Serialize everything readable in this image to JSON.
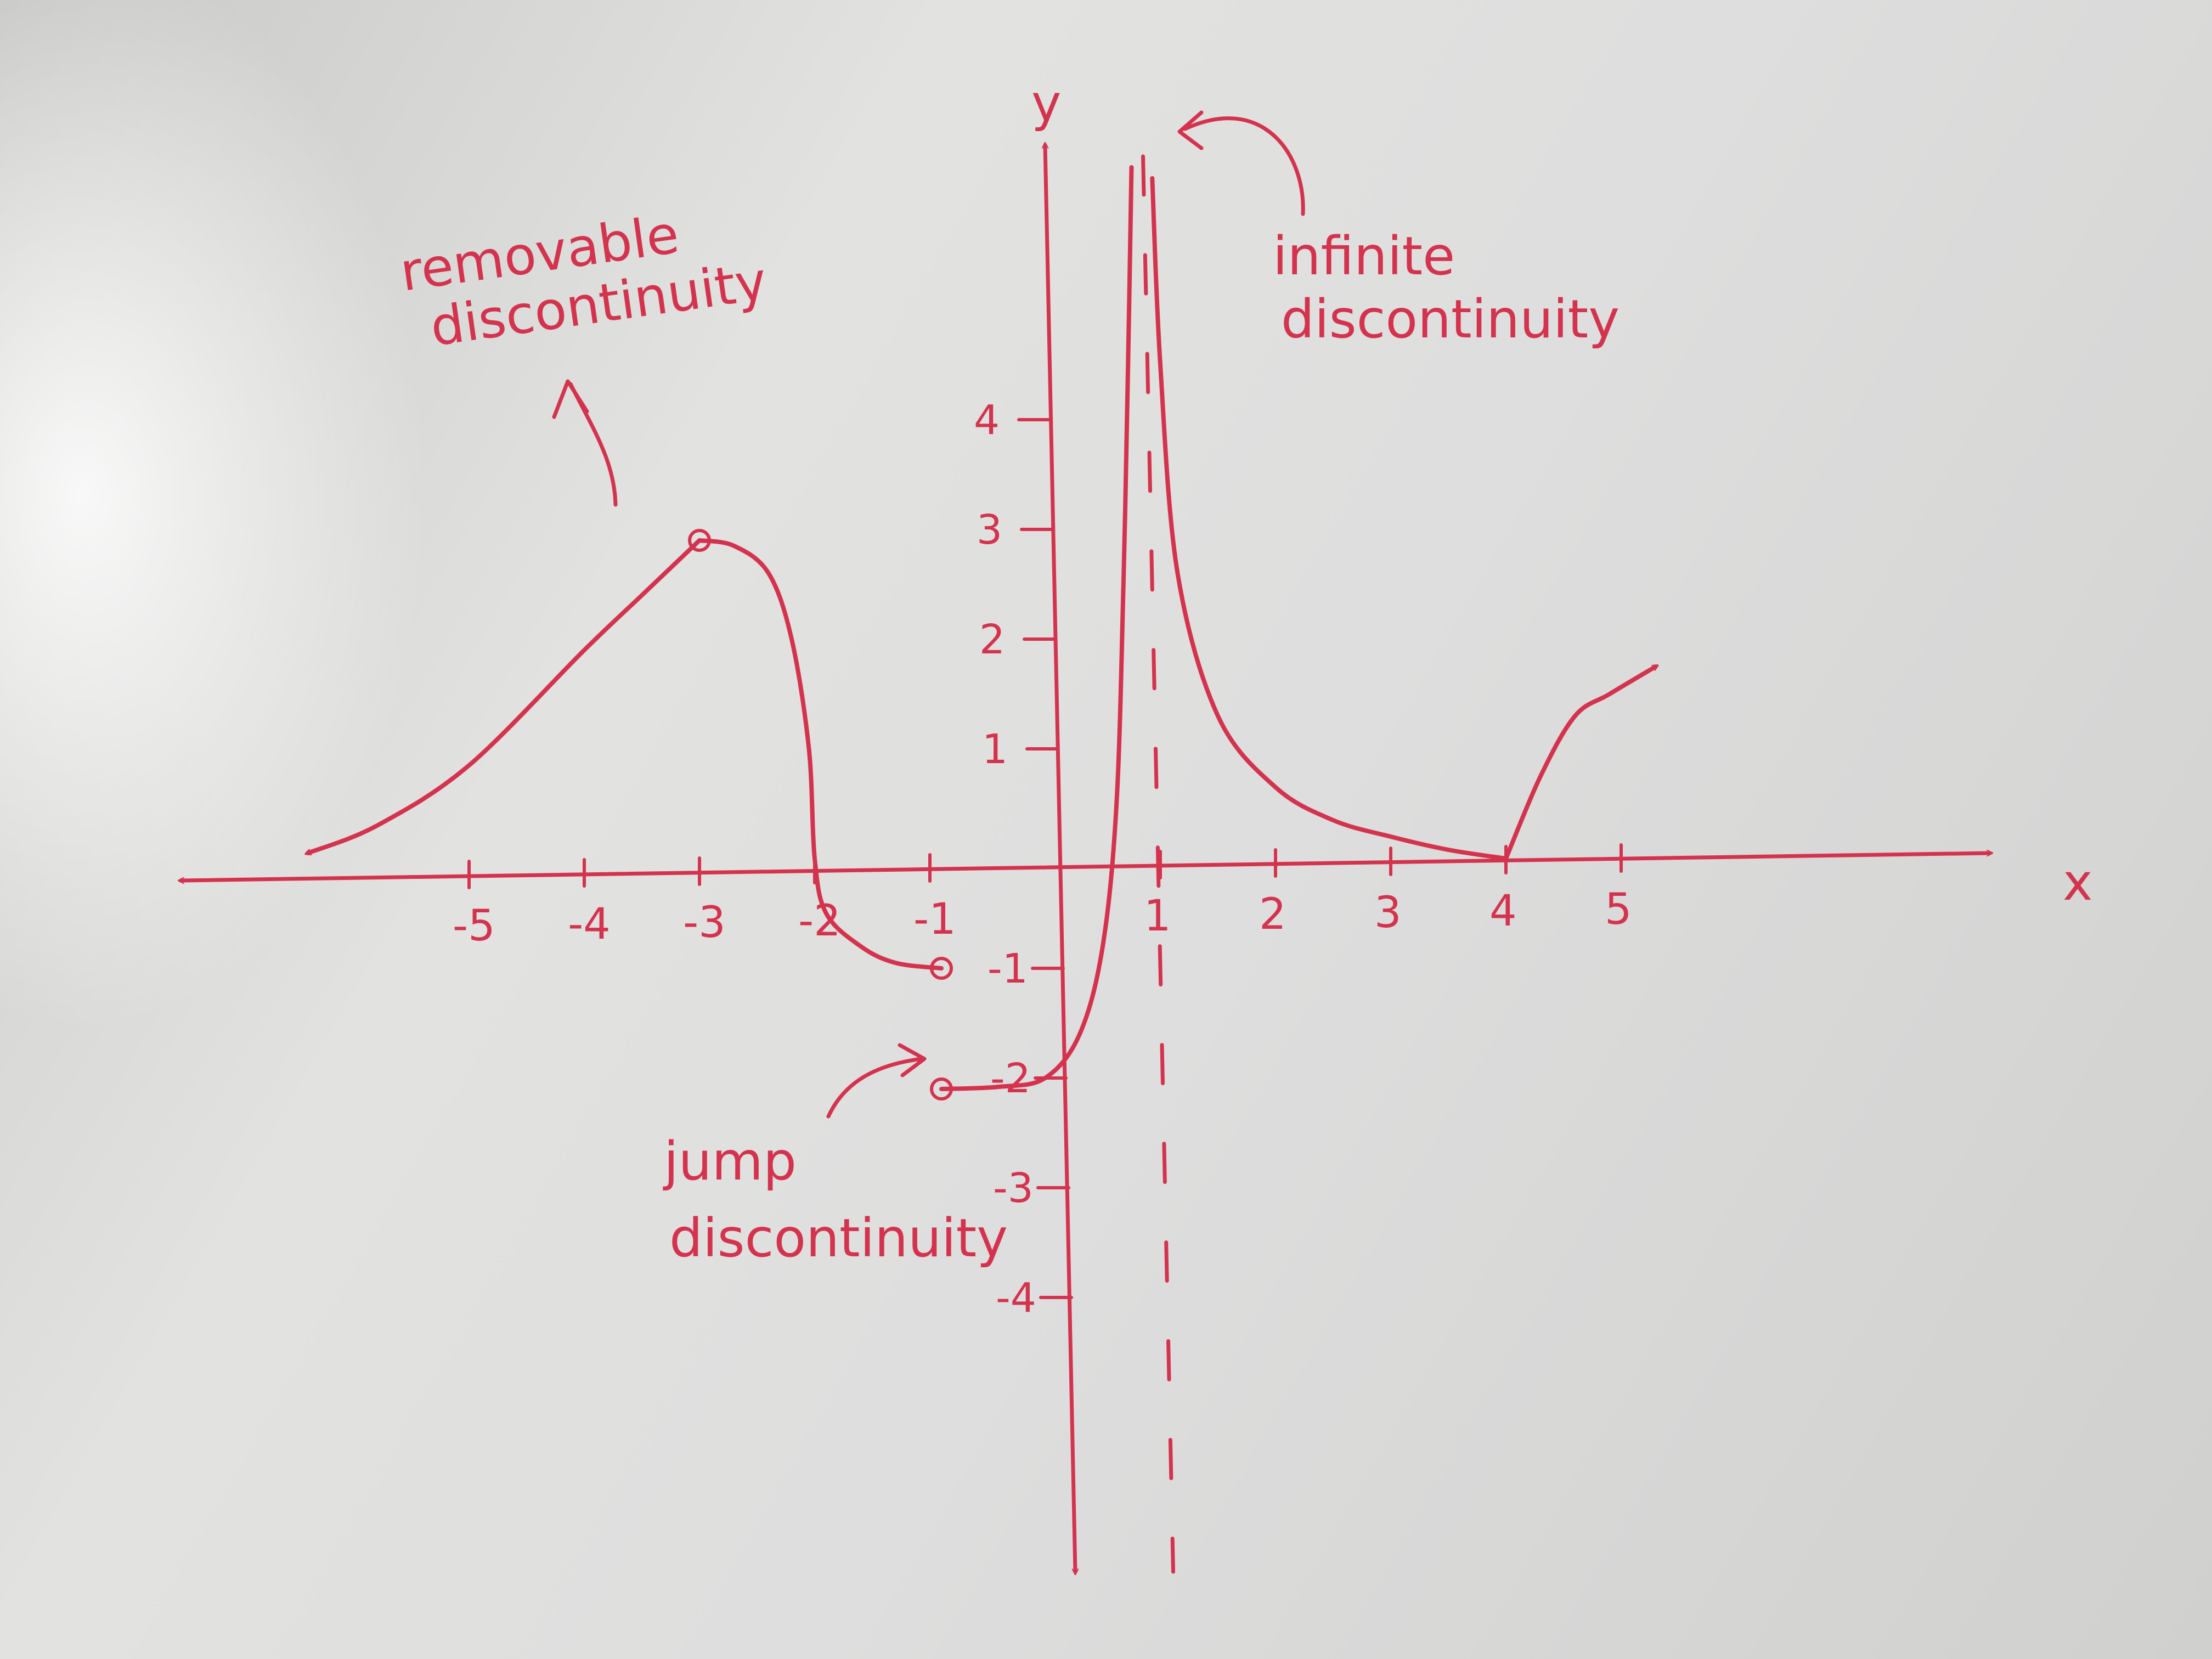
{
  "ink_color": "#d4334e",
  "board_color": "#dcdcda",
  "chart_data": {
    "type": "line",
    "title": "",
    "xlabel": "x",
    "ylabel": "y",
    "xlim": [
      -7.5,
      8.2
    ],
    "ylim": [
      -6.5,
      6.5
    ],
    "x_ticks": [
      {
        "value": -5,
        "label": "-5"
      },
      {
        "value": -4,
        "label": "-4"
      },
      {
        "value": -3,
        "label": "-3"
      },
      {
        "value": -2,
        "label": "-2"
      },
      {
        "value": -1,
        "label": "-1"
      },
      {
        "value": 1,
        "label": "1"
      },
      {
        "value": 2,
        "label": "2"
      },
      {
        "value": 3,
        "label": "3"
      },
      {
        "value": 4,
        "label": "4"
      },
      {
        "value": 5,
        "label": "5"
      }
    ],
    "y_ticks": [
      {
        "value": 4,
        "label": "4"
      },
      {
        "value": 3,
        "label": "3"
      },
      {
        "value": 2,
        "label": "2"
      },
      {
        "value": 1,
        "label": "1"
      },
      {
        "value": -1,
        "label": "-1"
      },
      {
        "value": -2,
        "label": "-2"
      },
      {
        "value": -3,
        "label": "-3"
      },
      {
        "value": -4,
        "label": "-4"
      }
    ],
    "grid": false,
    "asymptote_x": 0.85,
    "series": [
      {
        "points": [
          [
            -6.4,
            0.05
          ],
          [
            -5.8,
            0.3
          ],
          [
            -5,
            0.85
          ],
          [
            -4,
            1.9
          ],
          [
            -3.5,
            2.4
          ],
          [
            -3,
            2.9
          ]
        ],
        "arrow_start": true
      },
      {
        "points": [
          [
            -3,
            2.9
          ],
          [
            -2.7,
            2.85
          ],
          [
            -2.4,
            2.6
          ],
          [
            -2.2,
            2.0
          ],
          [
            -2.05,
            1.0
          ],
          [
            -2,
            0
          ],
          [
            -1.9,
            -0.5
          ],
          [
            -1.6,
            -0.8
          ],
          [
            -1.3,
            -0.95
          ],
          [
            -0.9,
            -1.0
          ]
        ]
      },
      {
        "points": [
          [
            -0.9,
            -2.1
          ],
          [
            -0.4,
            -2.08
          ],
          [
            0,
            -2.0
          ],
          [
            0.3,
            -1.6
          ],
          [
            0.5,
            -0.8
          ],
          [
            0.62,
            0.5
          ],
          [
            0.68,
            2.5
          ],
          [
            0.72,
            4.5
          ],
          [
            0.75,
            6.3
          ]
        ]
      },
      {
        "points": [
          [
            0.93,
            6.2
          ],
          [
            1.0,
            4.5
          ],
          [
            1.15,
            2.6
          ],
          [
            1.5,
            1.3
          ],
          [
            2,
            0.65
          ],
          [
            2.5,
            0.35
          ],
          [
            3,
            0.2
          ],
          [
            3.5,
            0.08
          ],
          [
            4,
            0
          ]
        ]
      },
      {
        "points": [
          [
            4,
            0
          ],
          [
            4.3,
            0.75
          ],
          [
            4.6,
            1.3
          ],
          [
            4.9,
            1.5
          ],
          [
            5.3,
            1.75
          ]
        ],
        "arrow_end": true
      }
    ],
    "open_points": [
      [
        -3,
        2.9
      ],
      [
        -0.9,
        -1.0
      ],
      [
        -0.9,
        -2.1
      ]
    ],
    "annotations": [
      {
        "lines": [
          "removable",
          "discontinuity"
        ]
      },
      {
        "lines": [
          "infinite",
          "discontinuity"
        ]
      },
      {
        "lines": [
          "jump",
          "discontinuity"
        ]
      }
    ]
  }
}
